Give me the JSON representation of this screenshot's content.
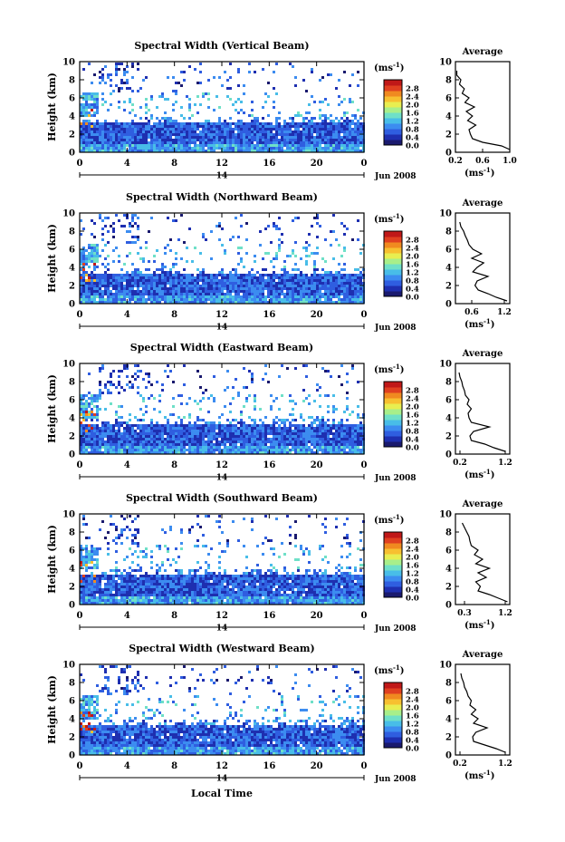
{
  "figure": {
    "panel_titles": [
      "Spectral Width (Vertical Beam)",
      "Spectral Width (Northward Beam)",
      "Spectral Width (Eastward Beam)",
      "Spectral Width (Southward Beam)",
      "Spectral Width (Westward Beam)"
    ],
    "average_title": "Average",
    "ylabel": "Height (km)",
    "xlabel": "Local Time",
    "colorbar_unit": "(ms",
    "colorbar_unit_exp": "-1",
    "colorbar_unit_close": ")",
    "profile_unit": "(ms",
    "profile_unit_exp": "-1",
    "profile_unit_close": ")",
    "date_label": "Jun 2008",
    "day_label": "14",
    "colors": {
      "scale": [
        "#1a1a6e",
        "#1e2fb0",
        "#2f5ee0",
        "#3c8cf0",
        "#48bde8",
        "#6fe0c8",
        "#a8ef8a",
        "#e8ee50",
        "#f7c030",
        "#f08a20",
        "#e04020",
        "#c01818"
      ]
    }
  },
  "chart_data": [
    {
      "type": "heatmap",
      "title": "Spectral Width (Vertical Beam)",
      "xlabel": "",
      "ylabel": "Height (km)",
      "x_range": [
        0,
        24
      ],
      "y_range": [
        0,
        10
      ],
      "xticks": [
        "0",
        "4",
        "8",
        "12",
        "16",
        "20",
        "0"
      ],
      "yticks": [
        "0",
        "2",
        "4",
        "6",
        "8",
        "10"
      ],
      "colorbar": {
        "ticks": [
          "0.0",
          "0.4",
          "0.8",
          "1.2",
          "1.6",
          "2.0",
          "2.4",
          "2.8"
        ],
        "range": [
          0,
          2.8
        ]
      },
      "profile": {
        "title": "Average",
        "xticks": [
          "0.2",
          "0.6",
          "1.0"
        ],
        "x_range": [
          0.2,
          1.0
        ],
        "heights": [
          0.3,
          0.7,
          1.1,
          1.5,
          2.0,
          2.5,
          3.0,
          3.5,
          4.0,
          4.5,
          5.0,
          5.5,
          6.0,
          6.5,
          7.0,
          7.5,
          8.0,
          8.5,
          9.0
        ],
        "values": [
          1.0,
          0.88,
          0.6,
          0.45,
          0.42,
          0.4,
          0.5,
          0.38,
          0.45,
          0.36,
          0.48,
          0.34,
          0.4,
          0.3,
          0.33,
          0.26,
          0.28,
          0.22,
          0.22
        ]
      }
    },
    {
      "type": "heatmap",
      "title": "Spectral Width (Northward Beam)",
      "xlabel": "",
      "ylabel": "Height (km)",
      "x_range": [
        0,
        24
      ],
      "y_range": [
        0,
        10
      ],
      "xticks": [
        "0",
        "4",
        "8",
        "12",
        "16",
        "20",
        "0"
      ],
      "yticks": [
        "0",
        "2",
        "4",
        "6",
        "8",
        "10"
      ],
      "colorbar": {
        "ticks": [
          "0.0",
          "0.4",
          "0.8",
          "1.2",
          "1.6",
          "2.0",
          "2.4",
          "2.8"
        ],
        "range": [
          0,
          2.8
        ]
      },
      "profile": {
        "title": "Average",
        "xticks": [
          "0.6",
          "1.2"
        ],
        "x_range": [
          0.3,
          1.3
        ],
        "heights": [
          0.3,
          0.7,
          1.1,
          1.5,
          2.0,
          2.5,
          3.0,
          3.5,
          4.0,
          4.5,
          5.0,
          5.5,
          6.0,
          6.5,
          7.0,
          7.5,
          8.0,
          8.5,
          9.0
        ],
        "values": [
          1.25,
          1.05,
          0.9,
          0.72,
          0.66,
          0.7,
          0.9,
          0.62,
          0.7,
          0.82,
          0.6,
          0.78,
          0.62,
          0.55,
          0.52,
          0.48,
          0.45,
          0.4,
          0.38
        ]
      }
    },
    {
      "type": "heatmap",
      "title": "Spectral Width (Eastward Beam)",
      "xlabel": "",
      "ylabel": "Height (km)",
      "x_range": [
        0,
        24
      ],
      "y_range": [
        0,
        10
      ],
      "xticks": [
        "0",
        "4",
        "8",
        "12",
        "16",
        "20",
        "0"
      ],
      "yticks": [
        "0",
        "2",
        "4",
        "6",
        "8",
        "10"
      ],
      "colorbar": {
        "ticks": [
          "0.0",
          "0.4",
          "0.8",
          "1.2",
          "1.6",
          "2.0",
          "2.4",
          "2.8"
        ],
        "range": [
          0,
          2.8
        ]
      },
      "profile": {
        "title": "Average",
        "xticks": [
          "0.2",
          "1.2"
        ],
        "x_range": [
          0.1,
          1.3
        ],
        "heights": [
          0.3,
          0.7,
          1.1,
          1.5,
          2.0,
          2.5,
          3.0,
          3.5,
          4.0,
          4.5,
          5.0,
          5.5,
          6.0,
          6.5,
          7.0,
          7.5,
          8.0,
          8.5,
          9.0
        ],
        "values": [
          1.2,
          0.95,
          0.75,
          0.45,
          0.42,
          0.5,
          0.85,
          0.45,
          0.4,
          0.38,
          0.45,
          0.36,
          0.4,
          0.32,
          0.3,
          0.26,
          0.24,
          0.2,
          0.18
        ]
      }
    },
    {
      "type": "heatmap",
      "title": "Spectral Width (Southward Beam)",
      "xlabel": "",
      "ylabel": "Height (km)",
      "x_range": [
        0,
        24
      ],
      "y_range": [
        0,
        10
      ],
      "xticks": [
        "0",
        "4",
        "8",
        "12",
        "16",
        "20",
        "0"
      ],
      "yticks": [
        "0",
        "2",
        "4",
        "6",
        "8",
        "10"
      ],
      "colorbar": {
        "ticks": [
          "0.0",
          "0.4",
          "0.8",
          "1.2",
          "1.6",
          "2.0",
          "2.4",
          "2.8"
        ],
        "range": [
          0,
          2.8
        ]
      },
      "profile": {
        "title": "Average",
        "xticks": [
          "0.3",
          "1.2"
        ],
        "x_range": [
          0.1,
          1.3
        ],
        "heights": [
          0.3,
          0.7,
          1.1,
          1.5,
          2.0,
          2.5,
          3.0,
          3.5,
          4.0,
          4.5,
          5.0,
          5.5,
          6.0,
          6.5,
          7.0,
          7.5,
          8.0,
          8.5,
          9.0
        ],
        "values": [
          1.25,
          1.05,
          0.85,
          0.6,
          0.65,
          0.55,
          0.78,
          0.6,
          0.85,
          0.55,
          0.7,
          0.52,
          0.6,
          0.45,
          0.42,
          0.4,
          0.35,
          0.3,
          0.25
        ]
      }
    },
    {
      "type": "heatmap",
      "title": "Spectral Width (Westward Beam)",
      "xlabel": "Local Time",
      "ylabel": "Height (km)",
      "x_range": [
        0,
        24
      ],
      "y_range": [
        0,
        10
      ],
      "xticks": [
        "0",
        "4",
        "8",
        "12",
        "16",
        "20",
        "0"
      ],
      "yticks": [
        "0",
        "2",
        "4",
        "6",
        "8",
        "10"
      ],
      "colorbar": {
        "ticks": [
          "0.0",
          "0.4",
          "0.8",
          "1.2",
          "1.6",
          "2.0",
          "2.4",
          "2.8"
        ],
        "range": [
          0,
          2.8
        ]
      },
      "profile": {
        "title": "Average",
        "xticks": [
          "0.2",
          "1.2"
        ],
        "x_range": [
          0.1,
          1.3
        ],
        "heights": [
          0.3,
          0.7,
          1.1,
          1.5,
          2.0,
          2.5,
          3.0,
          3.5,
          4.0,
          4.5,
          5.0,
          5.5,
          6.0,
          6.5,
          7.0,
          7.5,
          8.0,
          8.5,
          9.0
        ],
        "values": [
          1.2,
          1.0,
          0.75,
          0.5,
          0.48,
          0.55,
          0.8,
          0.5,
          0.6,
          0.45,
          0.55,
          0.42,
          0.45,
          0.38,
          0.35,
          0.3,
          0.28,
          0.24,
          0.22
        ]
      }
    }
  ]
}
